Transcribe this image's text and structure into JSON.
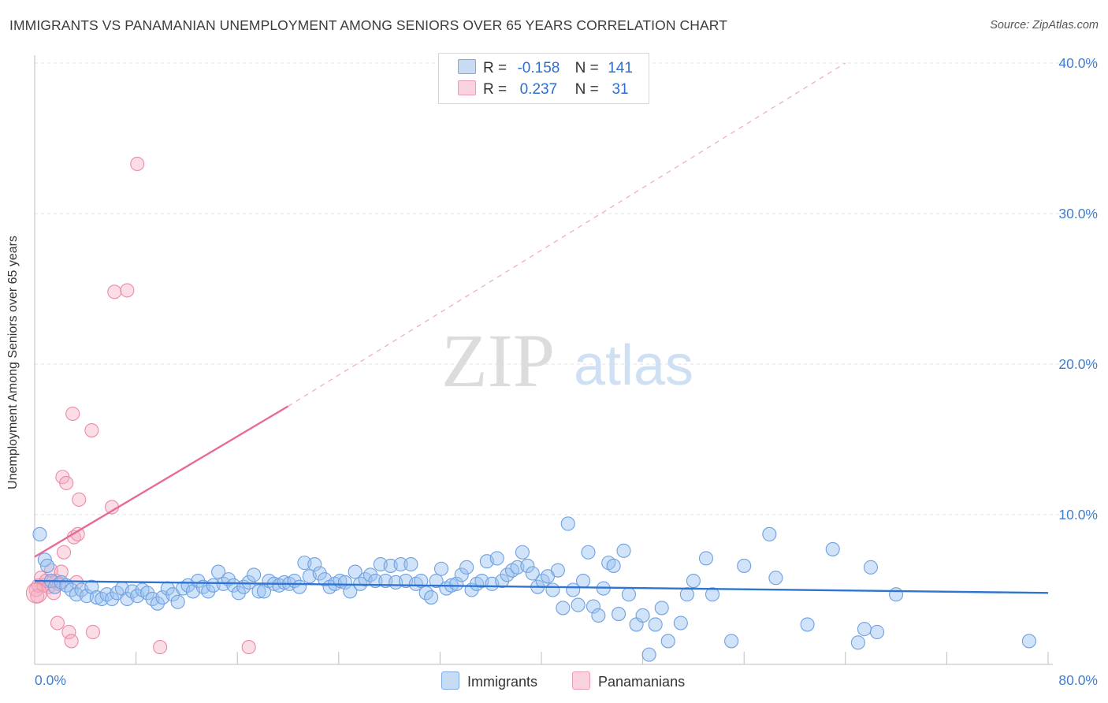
{
  "header": {
    "title": "IMMIGRANTS VS PANAMANIAN UNEMPLOYMENT AMONG SENIORS OVER 65 YEARS CORRELATION CHART",
    "source": "Source: ZipAtlas.com"
  },
  "watermark": {
    "zip": "ZIP",
    "atlas": "atlas"
  },
  "legend_stats": {
    "rows": [
      {
        "r_label": "R =",
        "r_value": "-0.158",
        "n_label": "N =",
        "n_value": "141",
        "color": "#a9c8f0"
      },
      {
        "r_label": "R =",
        "r_value": "0.237",
        "n_label": "N =",
        "n_value": "31",
        "color": "#f4b8c8"
      }
    ]
  },
  "bottom_legend": {
    "items": [
      {
        "label": "Immigrants",
        "color": "#a9c8f0"
      },
      {
        "label": "Panamanians",
        "color": "#f4b8c8"
      }
    ]
  },
  "colors": {
    "immigrants_fill": "rgba(154,192,240,0.45)",
    "immigrants_stroke": "#6fa0e0",
    "immigrants_line": "#2f74d0",
    "panamanians_fill": "rgba(244,170,190,0.40)",
    "panamanians_stroke": "#ec8aa6",
    "panamanians_line": "#e8699a",
    "axis_label": "#3f7dd0",
    "grid": "#e2e2e2"
  },
  "chart_data": {
    "type": "scatter",
    "title": "IMMIGRANTS VS PANAMANIAN UNEMPLOYMENT AMONG SENIORS OVER 65 YEARS CORRELATION CHART",
    "xlabel": "",
    "ylabel": "Unemployment Among Seniors over 65 years",
    "xlim": [
      0,
      80
    ],
    "ylim": [
      0,
      42
    ],
    "x_tick_labels": [
      "0.0%",
      "80.0%"
    ],
    "y_ticks": [
      10,
      20,
      30,
      40
    ],
    "y_tick_labels": [
      "10.0%",
      "20.0%",
      "30.0%",
      "40.0%"
    ],
    "grid": true,
    "legend_position": "top-center",
    "series": [
      {
        "name": "Immigrants",
        "r": -0.158,
        "n": 141,
        "trend": {
          "x": [
            0,
            80
          ],
          "y": [
            5.6,
            4.8
          ]
        },
        "points": [
          [
            0.4,
            8.7
          ],
          [
            0.8,
            7.0
          ],
          [
            1.0,
            6.6
          ],
          [
            1.3,
            5.6
          ],
          [
            1.6,
            5.2
          ],
          [
            2.1,
            5.5
          ],
          [
            2.5,
            5.3
          ],
          [
            2.9,
            5.0
          ],
          [
            3.3,
            4.7
          ],
          [
            3.7,
            5.0
          ],
          [
            4.1,
            4.6
          ],
          [
            4.5,
            5.2
          ],
          [
            4.9,
            4.5
          ],
          [
            5.3,
            4.4
          ],
          [
            5.7,
            4.7
          ],
          [
            6.1,
            4.4
          ],
          [
            6.5,
            4.8
          ],
          [
            6.9,
            5.1
          ],
          [
            7.3,
            4.4
          ],
          [
            7.7,
            4.9
          ],
          [
            8.1,
            4.6
          ],
          [
            8.5,
            5.0
          ],
          [
            8.9,
            4.8
          ],
          [
            9.3,
            4.4
          ],
          [
            9.7,
            4.1
          ],
          [
            10.1,
            4.5
          ],
          [
            10.5,
            5.1
          ],
          [
            10.9,
            4.7
          ],
          [
            11.3,
            4.2
          ],
          [
            11.7,
            5.1
          ],
          [
            12.1,
            5.3
          ],
          [
            12.5,
            4.9
          ],
          [
            12.9,
            5.6
          ],
          [
            13.3,
            5.2
          ],
          [
            13.7,
            4.9
          ],
          [
            14.1,
            5.3
          ],
          [
            14.5,
            6.2
          ],
          [
            14.9,
            5.4
          ],
          [
            15.3,
            5.7
          ],
          [
            15.7,
            5.3
          ],
          [
            16.1,
            4.8
          ],
          [
            16.5,
            5.2
          ],
          [
            16.9,
            5.5
          ],
          [
            17.3,
            6.0
          ],
          [
            17.7,
            4.9
          ],
          [
            18.1,
            4.9
          ],
          [
            18.5,
            5.6
          ],
          [
            18.9,
            5.4
          ],
          [
            19.3,
            5.3
          ],
          [
            19.7,
            5.5
          ],
          [
            20.1,
            5.4
          ],
          [
            20.5,
            5.6
          ],
          [
            20.9,
            5.2
          ],
          [
            21.3,
            6.8
          ],
          [
            21.7,
            5.9
          ],
          [
            22.1,
            6.7
          ],
          [
            22.5,
            6.1
          ],
          [
            22.9,
            5.7
          ],
          [
            23.3,
            5.2
          ],
          [
            23.7,
            5.4
          ],
          [
            24.1,
            5.6
          ],
          [
            24.5,
            5.5
          ],
          [
            24.9,
            4.9
          ],
          [
            25.3,
            6.2
          ],
          [
            25.7,
            5.4
          ],
          [
            26.1,
            5.7
          ],
          [
            26.5,
            6.0
          ],
          [
            26.9,
            5.6
          ],
          [
            27.3,
            6.7
          ],
          [
            27.7,
            5.6
          ],
          [
            28.1,
            6.6
          ],
          [
            28.5,
            5.5
          ],
          [
            28.9,
            6.7
          ],
          [
            29.3,
            5.6
          ],
          [
            29.7,
            6.7
          ],
          [
            30.1,
            5.4
          ],
          [
            30.5,
            5.6
          ],
          [
            30.9,
            4.8
          ],
          [
            31.3,
            4.5
          ],
          [
            31.7,
            5.6
          ],
          [
            32.1,
            6.4
          ],
          [
            32.5,
            5.1
          ],
          [
            32.9,
            5.3
          ],
          [
            33.3,
            5.4
          ],
          [
            33.7,
            6.0
          ],
          [
            34.1,
            6.5
          ],
          [
            34.5,
            5.0
          ],
          [
            34.9,
            5.4
          ],
          [
            35.3,
            5.6
          ],
          [
            35.7,
            6.9
          ],
          [
            36.1,
            5.4
          ],
          [
            36.5,
            7.1
          ],
          [
            36.9,
            5.6
          ],
          [
            37.3,
            6.0
          ],
          [
            37.7,
            6.3
          ],
          [
            38.1,
            6.5
          ],
          [
            38.5,
            7.5
          ],
          [
            38.9,
            6.6
          ],
          [
            39.3,
            6.1
          ],
          [
            39.7,
            5.2
          ],
          [
            40.1,
            5.6
          ],
          [
            40.5,
            5.9
          ],
          [
            40.9,
            5.0
          ],
          [
            41.3,
            6.3
          ],
          [
            41.7,
            3.8
          ],
          [
            42.1,
            9.4
          ],
          [
            42.5,
            5.0
          ],
          [
            42.9,
            4.0
          ],
          [
            43.3,
            5.6
          ],
          [
            43.7,
            7.5
          ],
          [
            44.1,
            3.9
          ],
          [
            44.5,
            3.3
          ],
          [
            44.9,
            5.1
          ],
          [
            45.3,
            6.8
          ],
          [
            45.7,
            6.6
          ],
          [
            46.1,
            3.4
          ],
          [
            46.5,
            7.6
          ],
          [
            46.9,
            4.7
          ],
          [
            47.5,
            2.7
          ],
          [
            48.0,
            3.3
          ],
          [
            48.5,
            0.7
          ],
          [
            49.0,
            2.7
          ],
          [
            49.5,
            3.8
          ],
          [
            50.0,
            1.6
          ],
          [
            51.0,
            2.8
          ],
          [
            51.5,
            4.7
          ],
          [
            52.0,
            5.6
          ],
          [
            53.0,
            7.1
          ],
          [
            53.5,
            4.7
          ],
          [
            55.0,
            1.6
          ],
          [
            56.0,
            6.6
          ],
          [
            58.0,
            8.7
          ],
          [
            58.5,
            5.8
          ],
          [
            61.0,
            2.7
          ],
          [
            63.0,
            7.7
          ],
          [
            65.0,
            1.5
          ],
          [
            65.5,
            2.4
          ],
          [
            66.0,
            6.5
          ],
          [
            66.5,
            2.2
          ],
          [
            68.0,
            4.7
          ],
          [
            78.5,
            1.6
          ]
        ]
      },
      {
        "name": "Panamanians",
        "r": 0.237,
        "n": 31,
        "trend": {
          "x": [
            0,
            20
          ],
          "y": [
            7.2,
            17.2
          ]
        },
        "trend_extension": {
          "x": [
            20,
            64
          ],
          "y": [
            17.2,
            40.0
          ]
        },
        "points": [
          [
            0.1,
            5.0
          ],
          [
            0.3,
            5.3
          ],
          [
            0.5,
            5.8
          ],
          [
            0.7,
            5.3
          ],
          [
            0.9,
            5.6
          ],
          [
            1.1,
            5.2
          ],
          [
            1.3,
            6.3
          ],
          [
            1.5,
            4.8
          ],
          [
            1.7,
            5.6
          ],
          [
            1.9,
            5.4
          ],
          [
            2.1,
            6.2
          ],
          [
            2.3,
            7.5
          ],
          [
            1.8,
            2.8
          ],
          [
            2.7,
            2.2
          ],
          [
            2.9,
            1.6
          ],
          [
            3.1,
            8.5
          ],
          [
            3.4,
            8.7
          ],
          [
            3.5,
            11.0
          ],
          [
            3.3,
            5.5
          ],
          [
            2.2,
            12.5
          ],
          [
            2.5,
            12.1
          ],
          [
            3.0,
            16.7
          ],
          [
            4.5,
            15.6
          ],
          [
            4.6,
            2.2
          ],
          [
            6.1,
            10.5
          ],
          [
            6.3,
            24.8
          ],
          [
            7.3,
            24.9
          ],
          [
            8.1,
            33.3
          ],
          [
            9.9,
            1.2
          ],
          [
            16.9,
            1.2
          ],
          [
            0.2,
            4.6
          ]
        ]
      }
    ]
  }
}
